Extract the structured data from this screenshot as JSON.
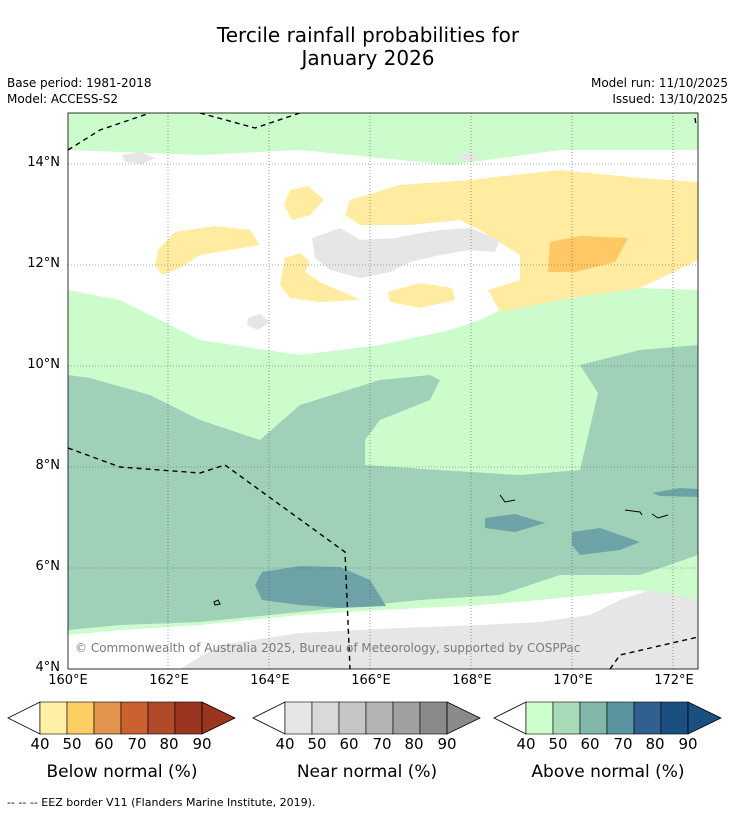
{
  "title_line1": "Tercile rainfall probabilities for",
  "title_line2": "January 2026",
  "base_period": "Base period: 1981-2018",
  "model": "Model: ACCESS-S2",
  "model_run": "Model run: 11/10/2025",
  "issued": "Issued: 13/10/2025",
  "lat_labels": [
    "14°N",
    "12°N",
    "10°N",
    "8°N",
    "6°N",
    "4°N"
  ],
  "lon_labels": [
    "160°E",
    "162°E",
    "164°E",
    "166°E",
    "168°E",
    "170°E",
    "172°E"
  ],
  "copyright": "© Commonwealth of Australia 2025, Bureau of Meteorology, supported by COSPPac",
  "colorbars": [
    {
      "label": "Below normal (%)",
      "ticks": [
        "40",
        "50",
        "60",
        "70",
        "80",
        "90"
      ],
      "colors": [
        "#fff0a6",
        "#fccd63",
        "#e0944d",
        "#cc6030",
        "#b04a2a",
        "#9c3520"
      ]
    },
    {
      "label": "Near normal (%)",
      "ticks": [
        "40",
        "50",
        "60",
        "70",
        "80",
        "90"
      ],
      "colors": [
        "#e6e6e6",
        "#d9d9d9",
        "#c6c6c6",
        "#b3b3b3",
        "#a0a0a0",
        "#8a8a8a"
      ]
    },
    {
      "label": "Above normal (%)",
      "ticks": [
        "40",
        "50",
        "60",
        "70",
        "80",
        "90"
      ],
      "colors": [
        "#ccffcc",
        "#a8dcb8",
        "#82b8a8",
        "#5a94a0",
        "#306090",
        "#1b4f80"
      ]
    }
  ],
  "legend_footnote": "--  --  -- EEZ border V11 (Flanders Marine Institute, 2019).",
  "map_colors": {
    "green": "#ccfccc",
    "teal": "#9fd1b9",
    "dark_teal": "#6da3a7",
    "yellow": "#ffeca1",
    "orange": "#ffc864",
    "gray": "#e6e6e6"
  }
}
